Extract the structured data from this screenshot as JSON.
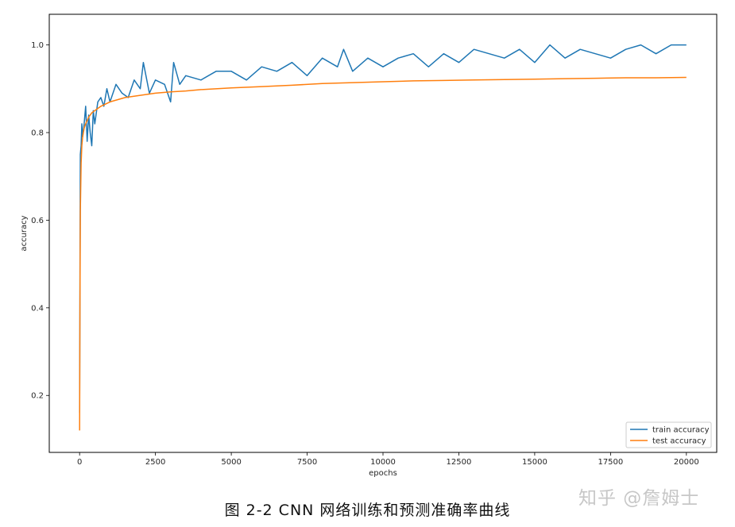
{
  "chart_data": {
    "type": "line",
    "xlabel": "epochs",
    "ylabel": "accuracy",
    "xlim": [
      -1000,
      21000
    ],
    "ylim": [
      0.07,
      1.07
    ],
    "xticks": [
      0,
      2500,
      5000,
      7500,
      10000,
      12500,
      15000,
      17500,
      20000
    ],
    "xtick_labels": [
      "0",
      "2500",
      "5000",
      "7500",
      "10000",
      "12500",
      "15000",
      "17500",
      "20000"
    ],
    "yticks": [
      0.2,
      0.4,
      0.6,
      0.8,
      1.0
    ],
    "ytick_labels": [
      "0.2",
      "0.4",
      "0.6",
      "0.8",
      "1.0"
    ],
    "grid": false,
    "legend_position": "lower-right",
    "series": [
      {
        "name": "train accuracy",
        "color": "#1f77b4",
        "x": [
          0,
          25,
          50,
          75,
          100,
          150,
          200,
          250,
          300,
          350,
          400,
          450,
          500,
          600,
          700,
          800,
          900,
          1000,
          1200,
          1400,
          1600,
          1800,
          2000,
          2100,
          2300,
          2500,
          2800,
          3000,
          3100,
          3300,
          3500,
          4000,
          4500,
          5000,
          5500,
          6000,
          6500,
          7000,
          7500,
          8000,
          8500,
          8700,
          9000,
          9500,
          10000,
          10500,
          11000,
          11500,
          12000,
          12500,
          13000,
          13500,
          14000,
          14500,
          15000,
          15500,
          16000,
          16500,
          17000,
          17500,
          18000,
          18500,
          19000,
          19500,
          20000
        ],
        "y": [
          0.16,
          0.75,
          0.77,
          0.82,
          0.79,
          0.82,
          0.86,
          0.78,
          0.84,
          0.8,
          0.77,
          0.85,
          0.82,
          0.87,
          0.88,
          0.86,
          0.9,
          0.87,
          0.91,
          0.89,
          0.88,
          0.92,
          0.9,
          0.96,
          0.89,
          0.92,
          0.91,
          0.87,
          0.96,
          0.91,
          0.93,
          0.92,
          0.94,
          0.94,
          0.92,
          0.95,
          0.94,
          0.96,
          0.93,
          0.97,
          0.95,
          0.99,
          0.94,
          0.97,
          0.95,
          0.97,
          0.98,
          0.95,
          0.98,
          0.96,
          0.99,
          0.98,
          0.97,
          0.99,
          0.96,
          1.0,
          0.97,
          0.99,
          0.98,
          0.97,
          0.99,
          1.0,
          0.98,
          1.0,
          1.0
        ]
      },
      {
        "name": "test accuracy",
        "color": "#ff7f0e",
        "x": [
          0,
          10,
          25,
          50,
          75,
          100,
          150,
          200,
          300,
          400,
          500,
          700,
          1000,
          1500,
          2000,
          2500,
          3000,
          3500,
          4000,
          5000,
          6000,
          7000,
          8000,
          9000,
          10000,
          11000,
          12000,
          13000,
          14000,
          15000,
          16000,
          17000,
          18000,
          19000,
          20000
        ],
        "y": [
          0.12,
          0.4,
          0.62,
          0.73,
          0.77,
          0.79,
          0.81,
          0.82,
          0.835,
          0.845,
          0.85,
          0.86,
          0.87,
          0.88,
          0.885,
          0.89,
          0.893,
          0.895,
          0.898,
          0.902,
          0.905,
          0.908,
          0.912,
          0.914,
          0.916,
          0.918,
          0.919,
          0.92,
          0.921,
          0.922,
          0.923,
          0.924,
          0.925,
          0.925,
          0.926
        ]
      }
    ]
  },
  "caption": "图 2-2 CNN 网络训练和预测准确率曲线",
  "watermark": "知乎 @詹姆士"
}
